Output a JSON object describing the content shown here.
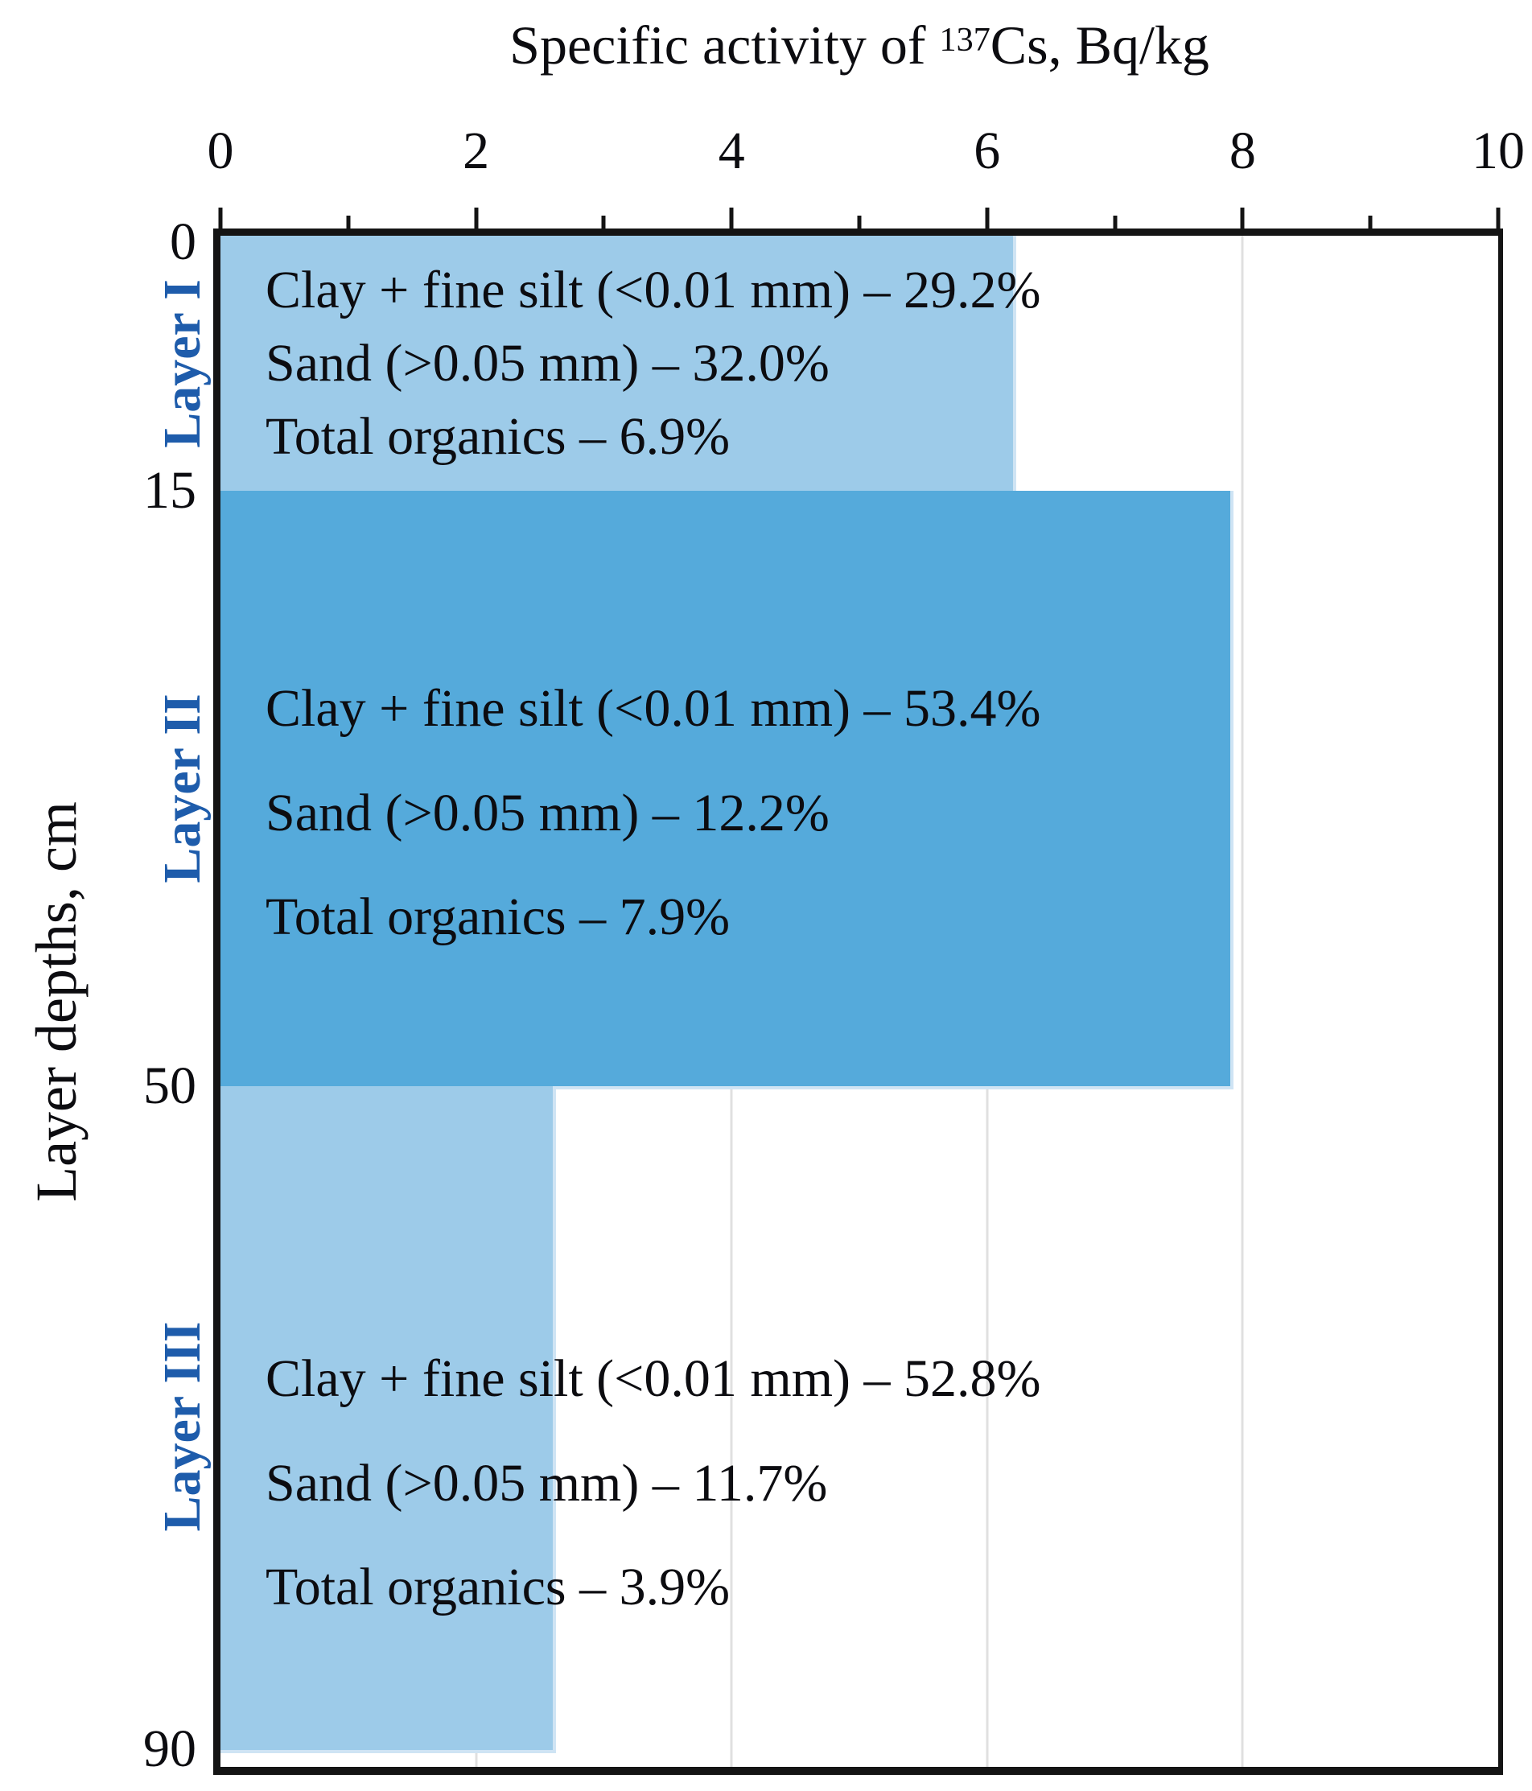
{
  "chart_data": {
    "type": "bar",
    "orientation": "horizontal",
    "title": {
      "prefix": "Specific activity of ",
      "isotope_superscript": "137",
      "suffix": "Cs, Bq/kg"
    },
    "xlabel": "Specific activity of 137Cs, Bq/kg",
    "ylabel": "Layer depths, cm",
    "xlim": [
      0,
      10
    ],
    "x_major_ticks": [
      0,
      2,
      4,
      6,
      8,
      10
    ],
    "x_minor_ticks": [
      1,
      3,
      5,
      7,
      9
    ],
    "gridlines_x": [
      2,
      4,
      6,
      8
    ],
    "grid": "vertical, light gray, behind bars",
    "legend": "none",
    "depth_ticks": [
      0,
      15,
      50,
      90
    ],
    "depth_range_cm": [
      0,
      90
    ],
    "layers": [
      {
        "name": "Layer I",
        "depth_top_cm": 0,
        "depth_bottom_cm": 15,
        "activity_bq_kg": 6.2,
        "shade": "light",
        "composition": [
          "Clay + fine silt (<0.01 mm) – 29.2%",
          "Sand (>0.05 mm) – 32.0%",
          "Total organics – 6.9%"
        ]
      },
      {
        "name": "Layer II",
        "depth_top_cm": 15,
        "depth_bottom_cm": 50,
        "activity_bq_kg": 7.9,
        "shade": "dark",
        "composition": [
          "Clay + fine silt (<0.01 mm) – 53.4%",
          "Sand (>0.05 mm) – 12.2%",
          "Total organics – 7.9%"
        ]
      },
      {
        "name": "Layer III",
        "depth_top_cm": 50,
        "depth_bottom_cm": 90,
        "activity_bq_kg": 2.6,
        "shade": "light",
        "composition": [
          "Clay + fine silt (<0.01 mm) – 52.8%",
          "Sand (>0.05 mm) – 11.7%",
          "Total organics – 3.9%"
        ]
      }
    ],
    "colors": {
      "bar_light": "#9dcbe9",
      "bar_dark": "#55aadb",
      "bar_edge": "#cfe4f4",
      "layer_label": "#1e5cab",
      "axis": "#141414",
      "grid": "#e0e0e0",
      "text": "#0c0c10"
    }
  }
}
